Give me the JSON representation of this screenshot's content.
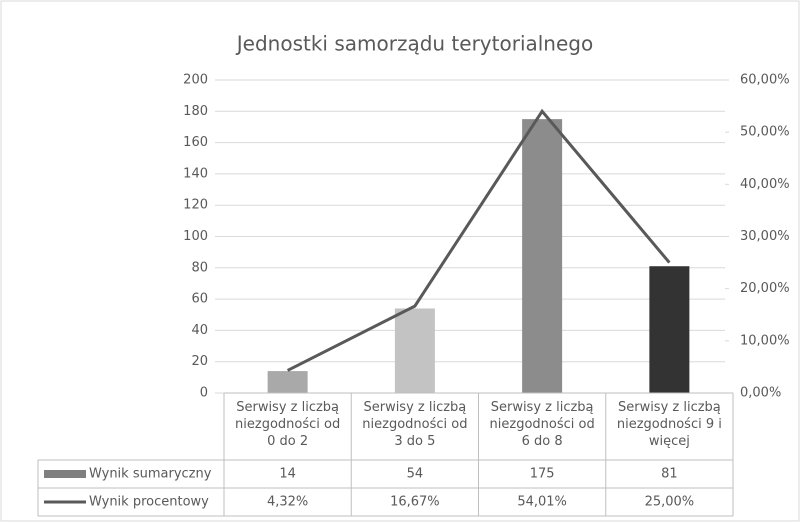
{
  "chart_data": {
    "type": "bar-line",
    "title": "Jednostki samorządu terytorialnego",
    "categories": [
      "Serwisy z liczbą niezgodności od 0 do 2",
      "Serwisy z liczbą niezgodności od 3 do 5",
      "Serwisy z liczbą niezgodności od 6 do 8",
      "Serwisy z liczbą niezgodności 9 i więcej"
    ],
    "series": [
      {
        "name": "Wynik sumaryczny",
        "type": "bar",
        "color": "#7f7f7f",
        "colors": [
          "#a9a9a9",
          "#c3c3c3",
          "#8c8c8c",
          "#333333"
        ],
        "values": [
          14,
          54,
          175,
          81
        ]
      },
      {
        "name": "Wynik procentowy",
        "type": "line",
        "axis": "y2",
        "color": "#595959",
        "values": [
          4.32,
          16.67,
          54.01,
          25.0
        ],
        "value_labels": [
          "4,32%",
          "16,67%",
          "54,01%",
          "25,00%"
        ]
      }
    ],
    "ylim": [
      0,
      200
    ],
    "yticks": [
      0,
      20,
      40,
      60,
      80,
      100,
      120,
      140,
      160,
      180,
      200
    ],
    "y2lim": [
      0,
      60
    ],
    "y2ticks": [
      {
        "value": 0,
        "label": "0,00%"
      },
      {
        "value": 10,
        "label": "10,00%"
      },
      {
        "value": 20,
        "label": "20,00%"
      },
      {
        "value": 30,
        "label": "30,00%"
      },
      {
        "value": 40,
        "label": "40,00%"
      },
      {
        "value": 50,
        "label": "50,00%"
      },
      {
        "value": 60,
        "label": "60,00%"
      }
    ],
    "grid": true,
    "data_table": true
  }
}
